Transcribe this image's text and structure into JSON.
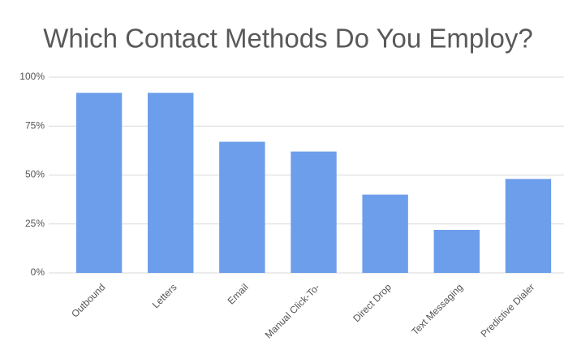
{
  "chart_data": {
    "type": "bar",
    "title": "Which Contact Methods Do You Employ?",
    "categories": [
      "Outbound",
      "Letters",
      "Email",
      "Manual Click-To-",
      "Direct Drop",
      "Text Messaging",
      "Predictive Dialer"
    ],
    "values": [
      92,
      92,
      67,
      62,
      40,
      22,
      48
    ],
    "color": "#6d9eeb",
    "ylim": [
      0,
      100
    ],
    "yticks": [
      {
        "value": 0,
        "label": "0%"
      },
      {
        "value": 25,
        "label": "25%"
      },
      {
        "value": 50,
        "label": "50%"
      },
      {
        "value": 75,
        "label": "75%"
      },
      {
        "value": 100,
        "label": "100%"
      }
    ],
    "grid": true
  }
}
